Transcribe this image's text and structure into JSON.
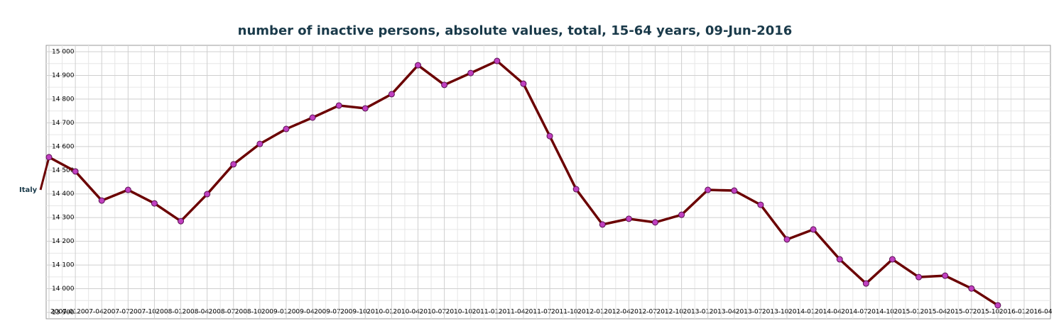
{
  "chart_data": {
    "type": "line",
    "title": "number of inactive persons, absolute values, total, 15-64 years, 09-Jun-2016",
    "categories": [
      "2007-01",
      "2007-04",
      "2007-07",
      "2007-10",
      "2008-01",
      "2008-04",
      "2008-07",
      "2008-10",
      "2009-01",
      "2009-04",
      "2009-07",
      "2009-10",
      "2010-01",
      "2010-04",
      "2010-07",
      "2010-10",
      "2011-01",
      "2011-04",
      "2011-07",
      "2011-10",
      "2012-01",
      "2012-04",
      "2012-07",
      "2012-10",
      "2013-01",
      "2013-04",
      "2013-07",
      "2013-10",
      "2014-01",
      "2014-04",
      "2014-07",
      "2014-10",
      "2015-01",
      "2015-04",
      "2015-07",
      "2015-10",
      "2016-01",
      "2016-04"
    ],
    "series": [
      {
        "name": "Italy",
        "color": "#6b0000",
        "marker_color": "#c040c0",
        "values": [
          14555,
          14495,
          14372,
          14417,
          14360,
          14285,
          14399,
          14525,
          14611,
          14674,
          14722,
          14773,
          14761,
          14821,
          14943,
          14860,
          14910,
          14961,
          14865,
          14644,
          14420,
          14271,
          14295,
          14280,
          14312,
          14417,
          14414,
          14354,
          14208,
          14250,
          14124,
          14022,
          14124,
          14049,
          14055,
          14001,
          13930,
          null
        ]
      }
    ],
    "ylim": [
      13900,
      15000
    ],
    "yticks": [
      {
        "value": 13900,
        "label": "13 900"
      },
      {
        "value": 14000,
        "label": "14 000"
      },
      {
        "value": 14100,
        "label": "14 100"
      },
      {
        "value": 14200,
        "label": "14 200"
      },
      {
        "value": 14300,
        "label": "14 300"
      },
      {
        "value": 14400,
        "label": "14 400"
      },
      {
        "value": 14500,
        "label": "14 500"
      },
      {
        "value": 14600,
        "label": "14 600"
      },
      {
        "value": 14700,
        "label": "14 700"
      },
      {
        "value": 14800,
        "label": "14 800"
      },
      {
        "value": 14900,
        "label": "14 900"
      },
      {
        "value": 15000,
        "label": "15 000"
      }
    ],
    "grid": true
  }
}
